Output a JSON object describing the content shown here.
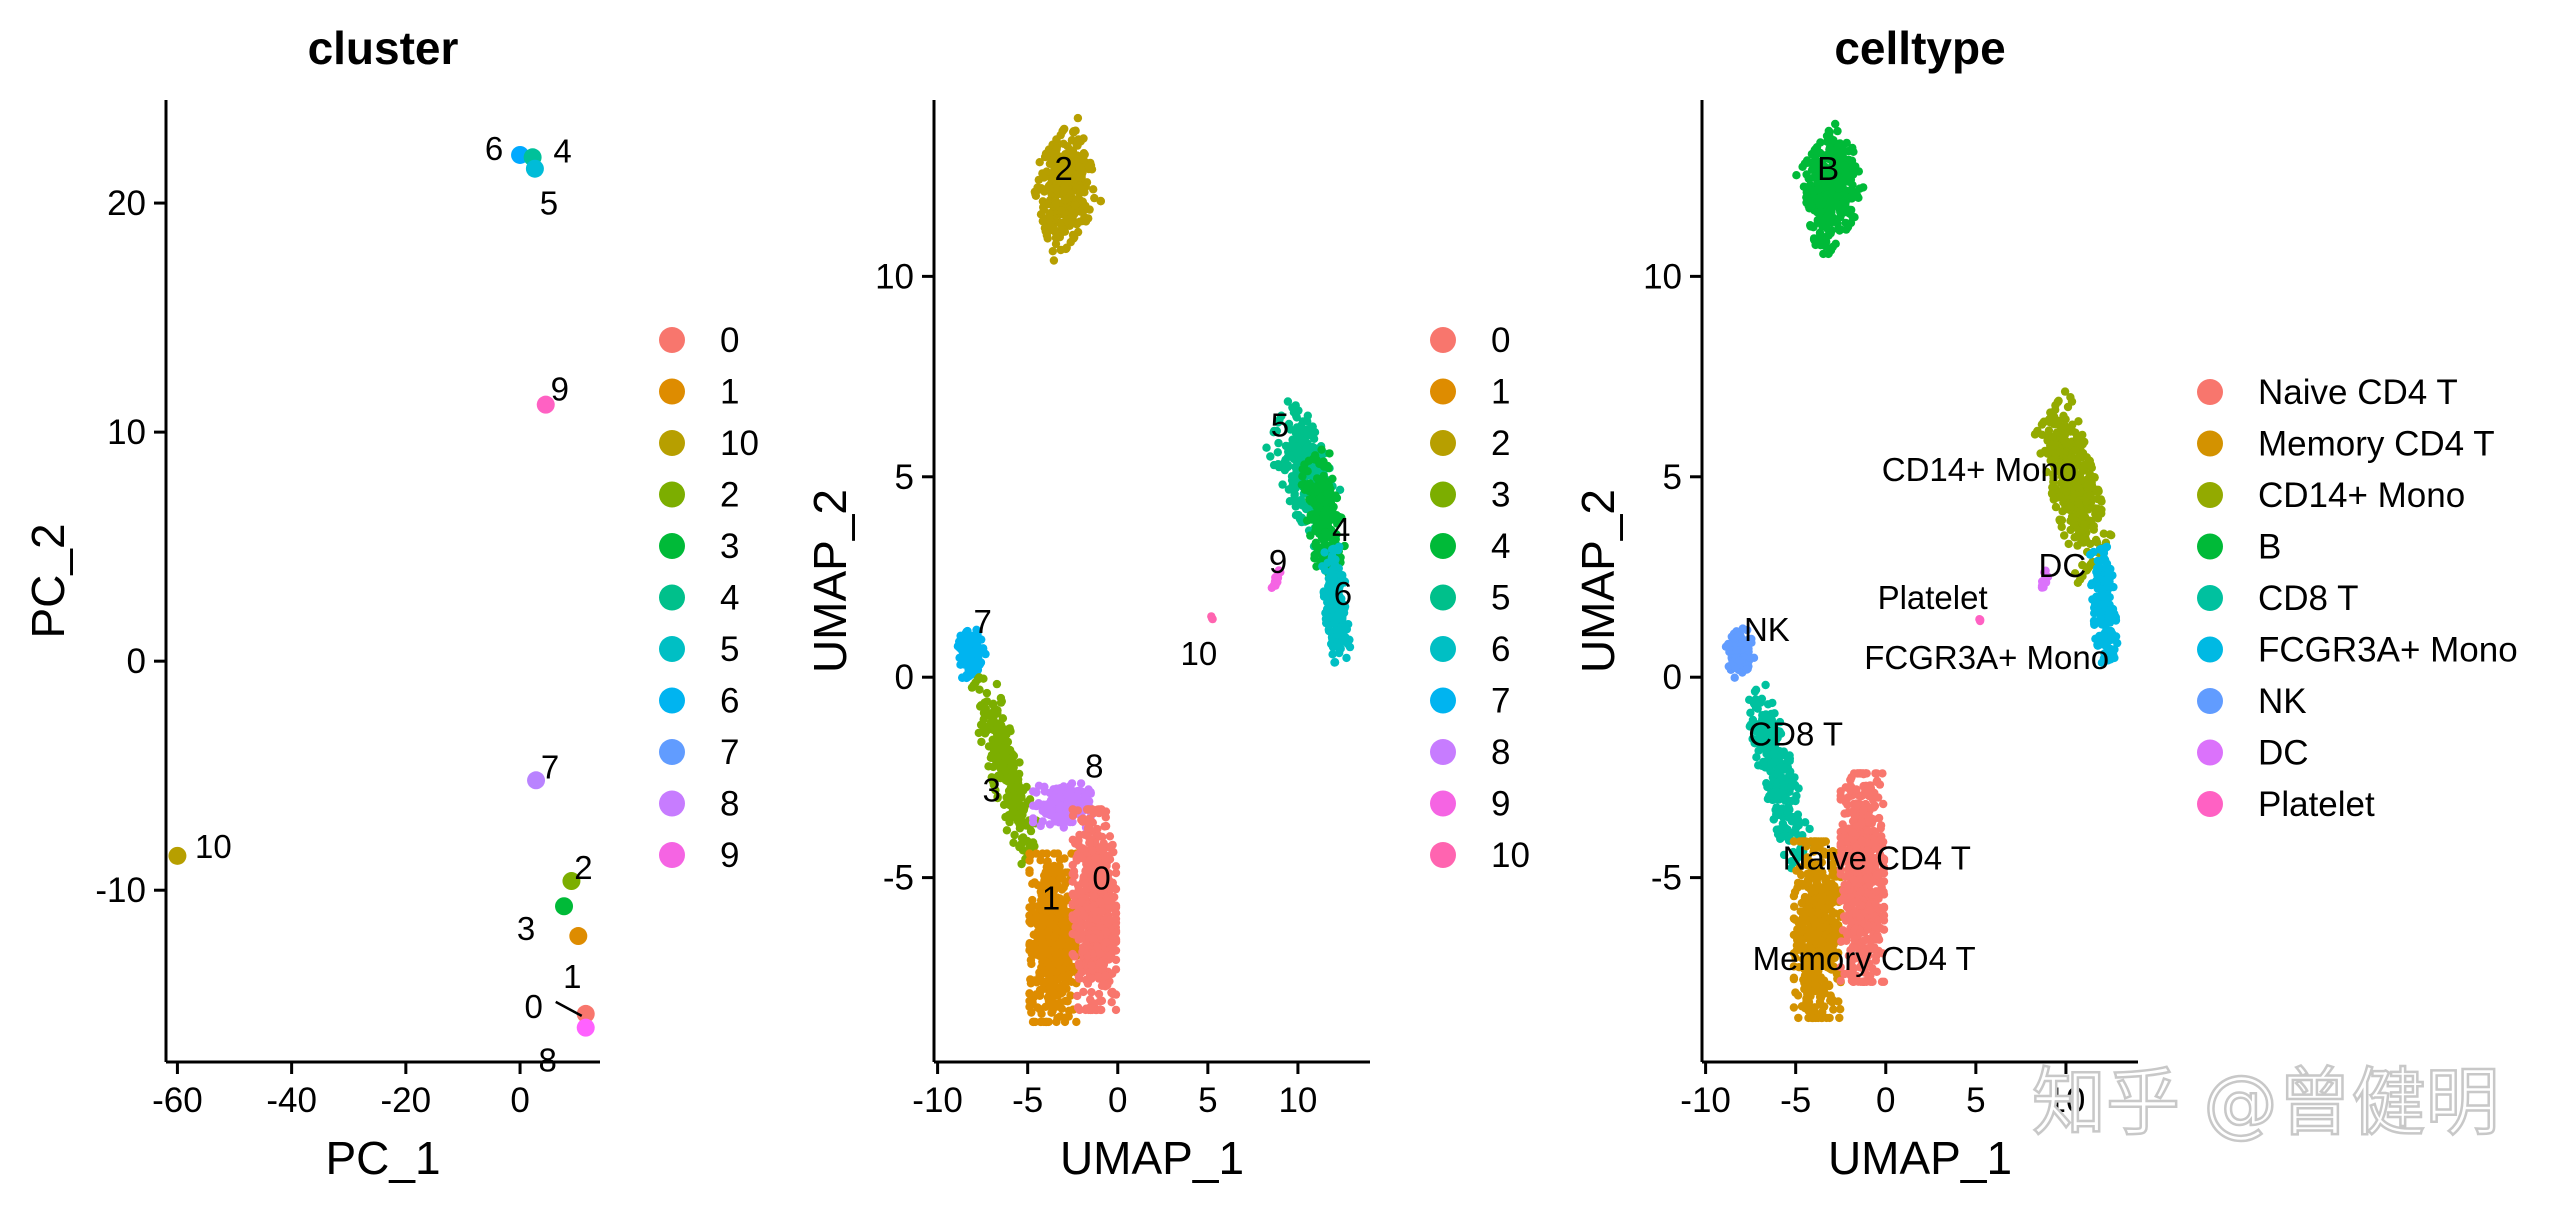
{
  "chart_data": [
    {
      "type": "scatter",
      "title": "cluster",
      "xlabel": "PC_1",
      "ylabel": "PC_2",
      "xlim": [
        -62,
        14
      ],
      "ylim": [
        -17.5,
        24.5
      ],
      "xticks": [
        -60,
        -40,
        -20,
        0
      ],
      "xtick_labels": [
        "-60",
        "-40",
        "-20",
        "0"
      ],
      "yticks": [
        -10,
        0,
        10,
        20
      ],
      "ytick_labels": [
        "-10",
        "0",
        "10",
        "20"
      ],
      "legend": {
        "position": "right",
        "entries": [
          {
            "label": "0",
            "color": "#F8766D"
          },
          {
            "label": "1",
            "color": "#DE8C00"
          },
          {
            "label": "10",
            "color": "#B79F00"
          },
          {
            "label": "2",
            "color": "#7CAE00"
          },
          {
            "label": "3",
            "color": "#00BA38"
          },
          {
            "label": "4",
            "color": "#00C08B"
          },
          {
            "label": "5",
            "color": "#00BFC4"
          },
          {
            "label": "6",
            "color": "#00B4F0"
          },
          {
            "label": "7",
            "color": "#619CFF"
          },
          {
            "label": "8",
            "color": "#C77CFF"
          },
          {
            "label": "9",
            "color": "#F564E3"
          }
        ]
      },
      "points": [
        {
          "label": "6",
          "x": 0,
          "y": 22.1,
          "color": "#00A9FF"
        },
        {
          "label": "4",
          "x": 2.2,
          "y": 22,
          "color": "#00C19A"
        },
        {
          "label": "5",
          "x": 2.6,
          "y": 21.5,
          "color": "#00BCD8"
        },
        {
          "label": "9",
          "x": 4.5,
          "y": 11.2,
          "color": "#FF61C3"
        },
        {
          "label": "7",
          "x": 2.8,
          "y": -5.2,
          "color": "#B983FF"
        },
        {
          "label": "10",
          "x": -60,
          "y": -8.5,
          "color": "#B79F00"
        },
        {
          "label": "2",
          "x": 9,
          "y": -9.6,
          "color": "#7CAE00"
        },
        {
          "label": "3",
          "x": 7.7,
          "y": -10.7,
          "color": "#00BA38"
        },
        {
          "label": "1",
          "x": 10.2,
          "y": -12,
          "color": "#DE8C00"
        },
        {
          "label": "0",
          "x": 11.5,
          "y": -15.4,
          "color": "#F8766D"
        },
        {
          "label": "8",
          "x": 11.5,
          "y": -16,
          "color": "#FF61FF"
        }
      ]
    },
    {
      "type": "scatter",
      "title": "",
      "xlabel": "UMAP_1",
      "ylabel": "UMAP_2",
      "xlim": [
        -10.2,
        14
      ],
      "ylim": [
        -9.6,
        14.4
      ],
      "xticks": [
        -10,
        -5,
        0,
        5,
        10
      ],
      "xtick_labels": [
        "-10",
        "-5",
        "0",
        "5",
        "10"
      ],
      "yticks": [
        -5,
        0,
        5,
        10
      ],
      "ytick_labels": [
        "-5",
        "0",
        "5",
        "10"
      ],
      "legend": {
        "position": "right",
        "entries": [
          {
            "label": "0",
            "color": "#F8766D"
          },
          {
            "label": "1",
            "color": "#DE8C00"
          },
          {
            "label": "2",
            "color": "#B79F00"
          },
          {
            "label": "3",
            "color": "#7CAE00"
          },
          {
            "label": "4",
            "color": "#00BA38"
          },
          {
            "label": "5",
            "color": "#00C08B"
          },
          {
            "label": "6",
            "color": "#00BFC4"
          },
          {
            "label": "7",
            "color": "#00B4F0"
          },
          {
            "label": "8",
            "color": "#C77CFF"
          },
          {
            "label": "9",
            "color": "#F564E3"
          },
          {
            "label": "10",
            "color": "#FF64B0"
          }
        ]
      },
      "clusters": [
        {
          "label": "2",
          "color": "#B79F00",
          "cx": -2.9,
          "cy": 12.2,
          "rx": 1.5,
          "ry": 1.3,
          "tilt": 0.55,
          "n": 360,
          "label_x": -3.0,
          "label_y": 12.7
        },
        {
          "label": "5",
          "color": "#00C08B",
          "cx": 10.3,
          "cy": 5.2,
          "rx": 1.8,
          "ry": 1.1,
          "tilt": -0.8,
          "n": 260,
          "label_x": 9.0,
          "label_y": 6.3
        },
        {
          "label": "4",
          "color": "#00BA38",
          "cx": 11.4,
          "cy": 4.1,
          "rx": 1.5,
          "ry": 0.9,
          "tilt": -1.2,
          "n": 200,
          "label_x": 12.4,
          "label_y": 3.7
        },
        {
          "label": "6",
          "color": "#00BFC4",
          "cx": 12.1,
          "cy": 1.8,
          "rx": 1.4,
          "ry": 0.6,
          "tilt": -1.4,
          "n": 190,
          "label_x": 12.5,
          "label_y": 2.1
        },
        {
          "label": "9",
          "color": "#F564E3",
          "cx": 8.8,
          "cy": 2.4,
          "rx": 0.35,
          "ry": 0.12,
          "tilt": 1.0,
          "n": 12,
          "label_x": 8.9,
          "label_y": 2.9
        },
        {
          "label": "10",
          "color": "#FF64B0",
          "cx": 5.2,
          "cy": 1.45,
          "rx": 0.08,
          "ry": 0.08,
          "tilt": 0,
          "n": 3,
          "label_x": 4.5,
          "label_y": 0.6
        },
        {
          "label": "7",
          "color": "#00B4F0",
          "cx": -8.1,
          "cy": 0.65,
          "rx": 0.7,
          "ry": 0.55,
          "tilt": 0.3,
          "n": 110,
          "label_x": -7.5,
          "label_y": 1.4
        },
        {
          "label": "3",
          "color": "#7CAE00",
          "cx": -6.3,
          "cy": -2.2,
          "rx": 2.6,
          "ry": 0.75,
          "tilt": -1.0,
          "n": 260,
          "label_x": -7.0,
          "label_y": -2.8
        },
        {
          "label": "8",
          "color": "#C77CFF",
          "cx": -3.1,
          "cy": -3.2,
          "rx": 1.6,
          "ry": 0.55,
          "tilt": 0,
          "n": 150,
          "label_x": -1.3,
          "label_y": -2.2
        },
        {
          "label": "1",
          "color": "#DE8C00",
          "cx": -3.6,
          "cy": -6.5,
          "rx": 1.3,
          "ry": 2.1,
          "tilt": 0,
          "n": 500,
          "label_x": -3.7,
          "label_y": -5.5
        },
        {
          "label": "0",
          "color": "#F8766D",
          "cx": -1.3,
          "cy": -5.8,
          "rx": 1.2,
          "ry": 2.5,
          "tilt": 0,
          "n": 600,
          "label_x": -0.9,
          "label_y": -5.0
        }
      ]
    },
    {
      "type": "scatter",
      "title": "celltype",
      "xlabel": "UMAP_1",
      "ylabel": "UMAP_2",
      "xlim": [
        -10.2,
        14
      ],
      "ylim": [
        -9.6,
        14.4
      ],
      "xticks": [
        -10,
        -5,
        0,
        5,
        10
      ],
      "xtick_labels": [
        "-10",
        "-5",
        "0",
        "5",
        "10"
      ],
      "yticks": [
        -5,
        0,
        5,
        10
      ],
      "ytick_labels": [
        "-5",
        "0",
        "5",
        "10"
      ],
      "legend": {
        "position": "right",
        "entries": [
          {
            "label": "Naive CD4 T",
            "color": "#F8766D"
          },
          {
            "label": "Memory CD4 T",
            "color": "#D39200"
          },
          {
            "label": "CD14+ Mono",
            "color": "#93AA00"
          },
          {
            "label": "B",
            "color": "#00BA38"
          },
          {
            "label": "CD8 T",
            "color": "#00C19F"
          },
          {
            "label": "FCGR3A+ Mono",
            "color": "#00B9E3"
          },
          {
            "label": "NK",
            "color": "#619CFF"
          },
          {
            "label": "DC",
            "color": "#DB72FB"
          },
          {
            "label": "Platelet",
            "color": "#FF61C3"
          }
        ]
      },
      "clusters": [
        {
          "label": "B",
          "color": "#00BA38",
          "cx": -3.0,
          "cy": 12.2,
          "rx": 1.5,
          "ry": 1.3,
          "tilt": 0.55,
          "n": 360,
          "label_x": -3.2,
          "label_y": 12.7
        },
        {
          "label": "CD14+ Mono",
          "color": "#93AA00",
          "cx": 10.4,
          "cy": 4.8,
          "rx": 2.2,
          "ry": 1.1,
          "tilt": -1.0,
          "n": 420,
          "label_x": 5.2,
          "label_y": 5.2
        },
        {
          "label": "FCGR3A+ Mono",
          "color": "#00B9E3",
          "cx": 12.1,
          "cy": 1.8,
          "rx": 1.4,
          "ry": 0.6,
          "tilt": -1.4,
          "n": 190,
          "label_x": 5.6,
          "label_y": 0.5
        },
        {
          "label": "DC",
          "color": "#DB72FB",
          "cx": 8.8,
          "cy": 2.4,
          "rx": 0.35,
          "ry": 0.12,
          "tilt": 1.0,
          "n": 12,
          "label_x": 9.8,
          "label_y": 2.8
        },
        {
          "label": "Platelet",
          "color": "#FF61C3",
          "cx": 5.2,
          "cy": 1.45,
          "rx": 0.08,
          "ry": 0.08,
          "tilt": 0,
          "n": 3,
          "label_x": 2.6,
          "label_y": 2.0
        },
        {
          "label": "NK",
          "color": "#619CFF",
          "cx": -8.1,
          "cy": 0.65,
          "rx": 0.7,
          "ry": 0.55,
          "tilt": 0.3,
          "n": 110,
          "label_x": -6.6,
          "label_y": 1.2
        },
        {
          "label": "CD8 T",
          "color": "#00C19F",
          "cx": -6.0,
          "cy": -2.4,
          "rx": 2.4,
          "ry": 0.8,
          "tilt": -1.0,
          "n": 260,
          "label_x": -5.0,
          "label_y": -1.4
        },
        {
          "label": "Memory CD4 T",
          "color": "#D39200",
          "cx": -3.8,
          "cy": -6.3,
          "rx": 1.3,
          "ry": 2.2,
          "tilt": 0,
          "n": 500,
          "label_x": -1.2,
          "label_y": -7.0
        },
        {
          "label": "Naive CD4 T",
          "color": "#F8766D",
          "cx": -1.3,
          "cy": -5.0,
          "rx": 1.2,
          "ry": 2.6,
          "tilt": 0,
          "n": 650,
          "label_x": -0.5,
          "label_y": -4.5
        }
      ]
    }
  ],
  "watermark": "知乎 @曾健明"
}
